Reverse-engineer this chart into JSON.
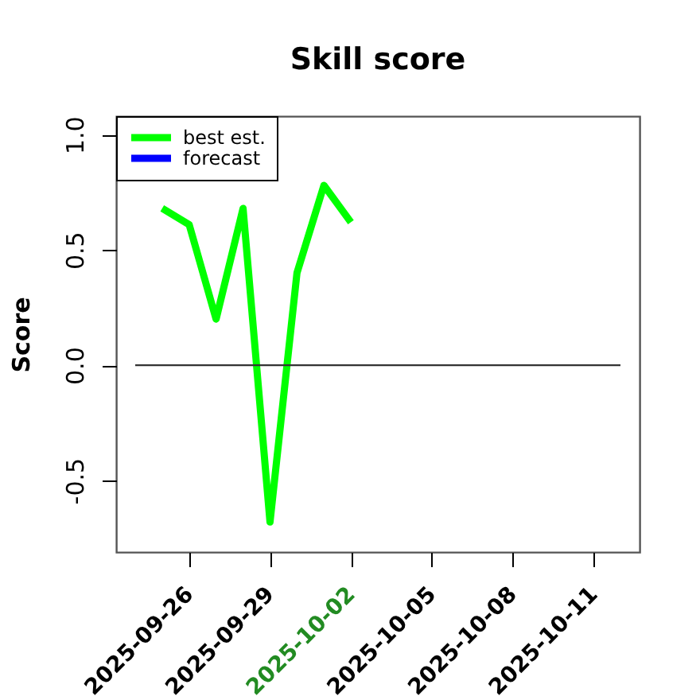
{
  "chart_data": {
    "type": "line",
    "title": "Skill score",
    "ylabel": "Score",
    "x": [
      "2025-09-25",
      "2025-09-26",
      "2025-09-27",
      "2025-09-28",
      "2025-09-29",
      "2025-09-30",
      "2025-10-01",
      "2025-10-02"
    ],
    "series": [
      {
        "name": "best est.",
        "color": "#00ff00",
        "values": [
          0.68,
          0.61,
          0.2,
          0.68,
          -0.68,
          0.4,
          0.78,
          0.62
        ]
      },
      {
        "name": "forecast",
        "color": "#0000ff",
        "values": [
          null,
          null,
          null,
          null,
          null,
          null,
          null,
          null
        ]
      },
      {
        "color": "#333333",
        "x": [
          "2025-09-24",
          "2025-10-12"
        ],
        "values": [
          0,
          0
        ]
      }
    ],
    "xlim": [
      "2025-09-23T07:00",
      "2025-10-12T17:00"
    ],
    "ylim": [
      -0.81,
      1.08
    ],
    "xticks": [
      "2025-09-26",
      "2025-09-29",
      "2025-10-02",
      "2025-10-05",
      "2025-10-08",
      "2025-10-11"
    ],
    "yticks": [
      -0.5,
      {
        "value": 0,
        "label": "0.0"
      },
      0.5,
      {
        "value": 1,
        "label": "1.0"
      }
    ],
    "legend": "top left",
    "grid": false,
    "marker": "none",
    "line_style": "solid"
  }
}
